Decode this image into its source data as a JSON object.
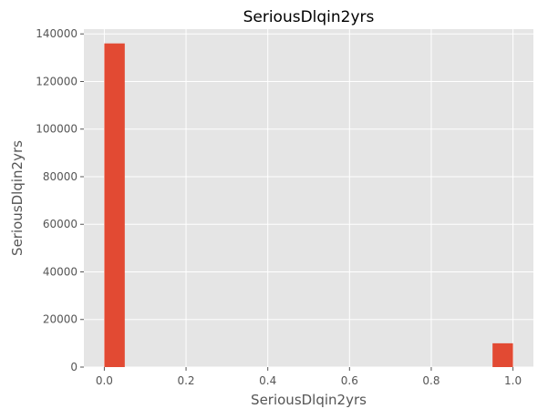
{
  "chart_data": {
    "type": "bar",
    "title": "SeriousDlqin2yrs",
    "xlabel": "SeriousDlqin2yrs",
    "ylabel": "SeriousDlqin2yrs",
    "xlim": [
      -0.05,
      1.05
    ],
    "ylim": [
      0,
      142000
    ],
    "xticks": [
      0.0,
      0.2,
      0.4,
      0.6,
      0.8,
      1.0
    ],
    "xtick_labels": [
      "0.0",
      "0.2",
      "0.4",
      "0.6",
      "0.8",
      "1.0"
    ],
    "yticks": [
      0,
      20000,
      40000,
      60000,
      80000,
      100000,
      120000,
      140000
    ],
    "ytick_labels": [
      "0",
      "20000",
      "40000",
      "60000",
      "80000",
      "100000",
      "120000",
      "140000"
    ],
    "grid": true,
    "bars": [
      {
        "x0": 0.0,
        "x1": 0.05,
        "value": 136000
      },
      {
        "x0": 0.95,
        "x1": 1.0,
        "value": 10000
      }
    ],
    "colors": {
      "bar": "#e24a33",
      "plot_background": "#e5e5e5",
      "grid": "#ffffff",
      "text": "#555555",
      "title": "#000000"
    }
  }
}
